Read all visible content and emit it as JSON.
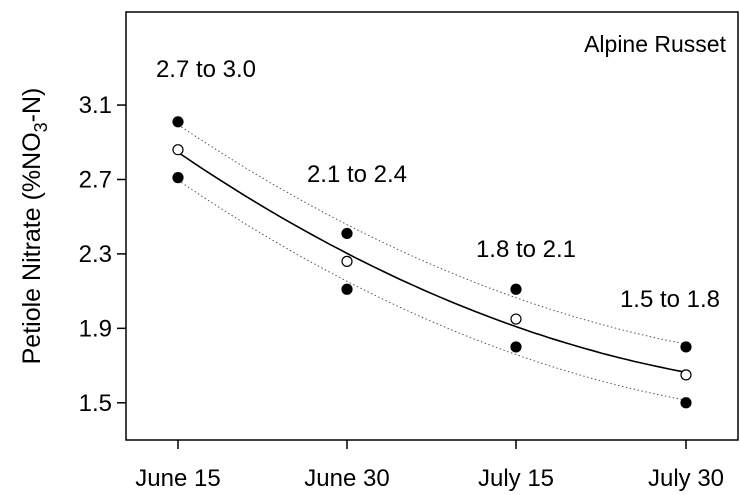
{
  "chart_data": {
    "type": "scatter",
    "title": "Alpine Russet",
    "xlabel": "",
    "ylabel": "Petiole Nitrate (%NO",
    "ylabel_sub": "3",
    "ylabel_suffix": "-N)",
    "categories": [
      "June 15",
      "June 30",
      "July 15",
      "July 30"
    ],
    "ylim": [
      1.3,
      3.6
    ],
    "yticks": [
      1.5,
      1.9,
      2.3,
      2.7,
      3.1
    ],
    "ytick_labels": [
      "1.5",
      "1.9",
      "2.3",
      "2.7",
      "3.1"
    ],
    "series": [
      {
        "key": "upper",
        "style": "filled",
        "values": [
          3.01,
          2.41,
          2.11,
          1.8
        ]
      },
      {
        "key": "lower",
        "style": "filled",
        "values": [
          2.71,
          2.11,
          1.8,
          1.5
        ]
      },
      {
        "key": "mid",
        "style": "open",
        "values": [
          2.86,
          2.26,
          1.95,
          1.65
        ]
      }
    ],
    "range_labels": [
      "2.7 to 3.0",
      "2.1 to 2.4",
      "1.8 to 2.1",
      "1.5 to 1.8"
    ],
    "grid": false,
    "colors": {
      "axis": "#000000",
      "fit_line": "#000000",
      "band_line": "#555555",
      "marker": "#000000"
    }
  }
}
